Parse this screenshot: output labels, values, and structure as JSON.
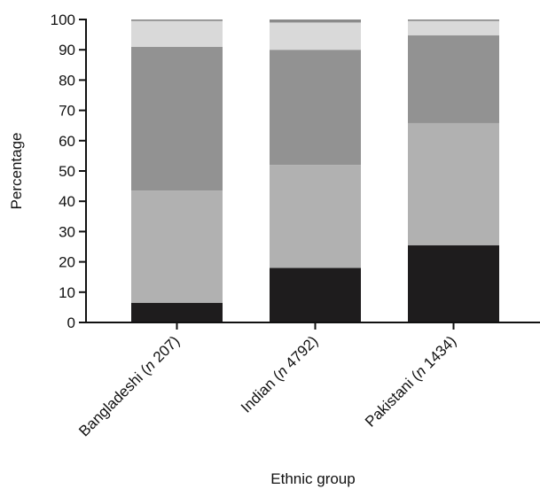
{
  "chart_data": {
    "type": "bar",
    "stacked": true,
    "orientation": "vertical",
    "categories": [
      {
        "text": "Bangladeshi (",
        "n_symbol": "n",
        "n_value": " 207)"
      },
      {
        "text": "Indian (",
        "n_symbol": "n",
        "n_value": " 4792)"
      },
      {
        "text": "Pakistani (",
        "n_symbol": "n",
        "n_value": " 1434)"
      }
    ],
    "series": [
      {
        "values": [
          6.5,
          18,
          25.5
        ],
        "color": "#1e1c1d"
      },
      {
        "values": [
          37,
          34,
          40.3
        ],
        "color": "#b1b1b1"
      },
      {
        "values": [
          47.5,
          38,
          29
        ],
        "color": "#929292"
      },
      {
        "values": [
          8.5,
          9,
          4.7
        ],
        "color": "#d9d9d9"
      },
      {
        "values": [
          0.5,
          1,
          0.5
        ],
        "color": "#8a8a8a"
      }
    ],
    "xlabel": "Ethnic group",
    "ylabel": "Percentage",
    "ylim": [
      0,
      100
    ],
    "yticks": [
      0,
      10,
      20,
      30,
      40,
      50,
      60,
      70,
      80,
      90,
      100
    ],
    "grid": false,
    "legend": "none"
  }
}
